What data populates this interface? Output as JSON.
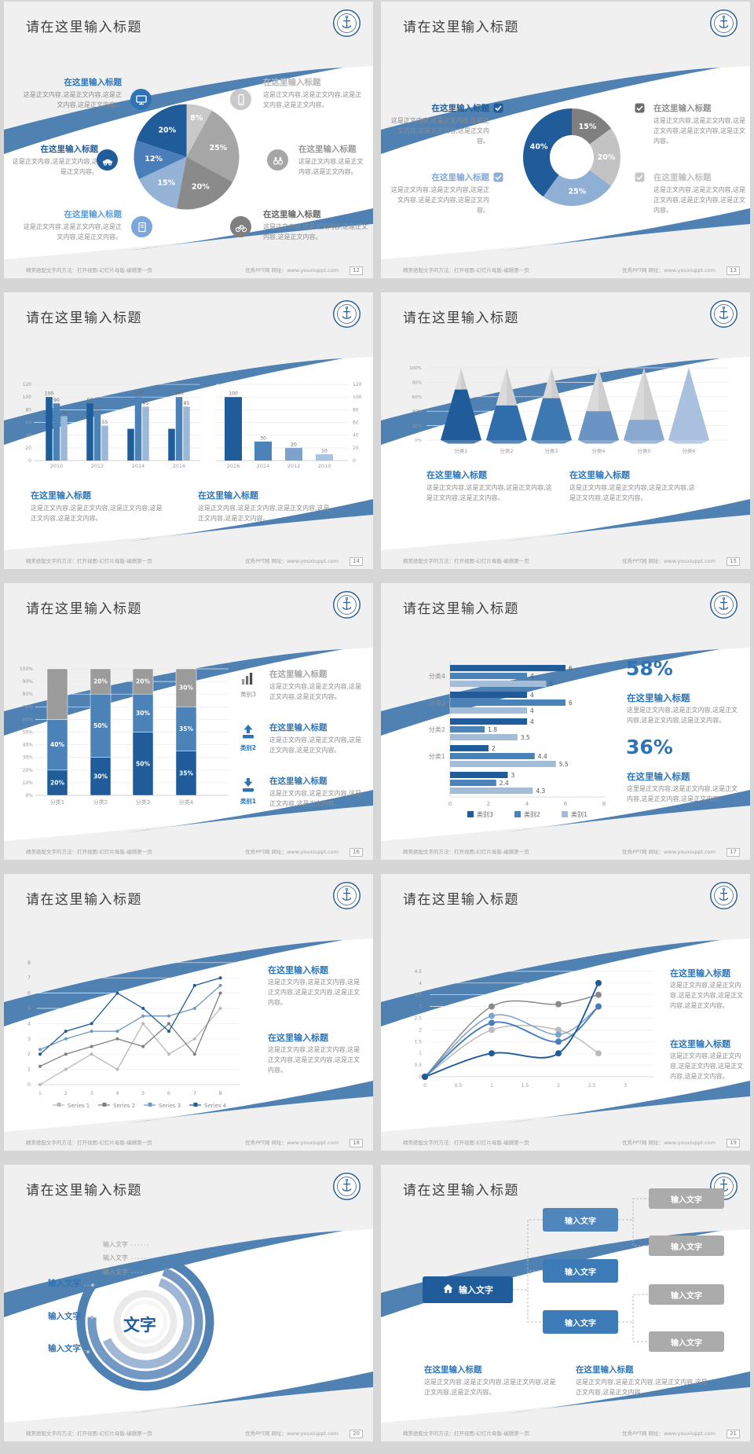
{
  "common": {
    "slide_title": "请在这里输入标题",
    "block_heading": "在这里输入标题",
    "body_a": "这是正文内容,这是正文内容,这是正文内容,这是正文内容。",
    "body_s": "这是正文内容,这是正文内容,这是正文内容。",
    "body_b": "这是正文内容,这是正文内容,这是正文内容,这是正文内容,这是正文内容。",
    "body_c": "这里是正文内容,这是正文内容,这是正文内容,这是正文内容,这是正文内容。",
    "input_text": "输入文字",
    "footer_left": "精美绝配文字的方法：打开视图-幻灯片母版-编辑第一页",
    "footer_right": "优秀PPT网  网址：www.youxiuppt.com"
  },
  "colors": {
    "accent_blue": "#4f81b3",
    "dark_blue": "#1f5c99",
    "mid_blue": "#4b82b8",
    "light_blue": "#9ab8d8",
    "heading_blue": "#2e74b5",
    "dark_gray": "#7f7f7f",
    "mid_gray": "#a6a6a6",
    "light_gray": "#c9c9c9"
  },
  "slides": {
    "s1": {
      "page": "12",
      "icons": [
        "monitor",
        "car",
        "book",
        "phone",
        "binoculars",
        "bicycle"
      ]
    },
    "s2": {
      "page": "13",
      "icons": [
        "checkbox",
        "checkbox",
        "checkbox",
        "checkbox"
      ]
    },
    "s3": {
      "page": "14"
    },
    "s4": {
      "page": "15"
    },
    "s5": {
      "page": "16",
      "icons": [
        "bar-chart",
        "upload-arrow",
        "download-arrow"
      ],
      "item_captions": [
        "类别3",
        "类别2",
        "类别1"
      ]
    },
    "s6": {
      "page": "17",
      "callouts": [
        {
          "pct": "58%"
        },
        {
          "pct": "36%"
        }
      ]
    },
    "s7": {
      "page": "18"
    },
    "s8": {
      "page": "19"
    },
    "s9": {
      "page": "20",
      "center": "文字"
    },
    "s10": {
      "page": "21",
      "icons": [
        "house"
      ]
    }
  },
  "chart_data": [
    {
      "slide_page": "12",
      "type": "pie",
      "labels": [
        "8%",
        "25%",
        "20%",
        "15%",
        "12%",
        "20%"
      ],
      "values": [
        8,
        25,
        20,
        15,
        12,
        20
      ],
      "colors": [
        "#c9c9c9",
        "#a6a6a6",
        "#8a8a8a",
        "#94b3d7",
        "#4a7ebb",
        "#1f5c99"
      ],
      "start": "12 o'clock, clockwise"
    },
    {
      "slide_page": "13",
      "type": "pie",
      "subtype": "donut",
      "labels": [
        "15%",
        "20%",
        "25%",
        "40%"
      ],
      "values": [
        15,
        20,
        25,
        40
      ],
      "colors": [
        "#7f7f7f",
        "#c3c3c3",
        "#8fafd4",
        "#1f5c99"
      ],
      "inner_ratio": 0.45
    },
    {
      "slide_page": "14",
      "type": "bar",
      "subtype": "grouped",
      "categories": [
        "2010",
        "2012",
        "2014",
        "2016"
      ],
      "series": [
        {
          "name": "series-dark",
          "color": "#1f5c99",
          "values": [
            100,
            90,
            50,
            50
          ],
          "labels": [
            "100",
            "90",
            "",
            ""
          ]
        },
        {
          "name": "series-mid",
          "color": "#4b82b8",
          "values": [
            90,
            75,
            100,
            100
          ],
          "labels": [
            "90",
            "75",
            "100",
            "100"
          ]
        },
        {
          "name": "series-light",
          "color": "#9ab8d8",
          "values": [
            70,
            55,
            85,
            85
          ],
          "labels": [
            "70",
            "55",
            "85",
            "85"
          ]
        }
      ],
      "ylim": [
        0,
        120
      ],
      "yticks": [
        0,
        20,
        40,
        60,
        80,
        100,
        120
      ],
      "y_axis_side": "left",
      "grid": true
    },
    {
      "slide_page": "14",
      "type": "bar",
      "subtype": "simple",
      "categories": [
        "2016",
        "2014",
        "2012",
        "2010"
      ],
      "values": [
        100,
        30,
        20,
        10
      ],
      "labels": [
        "100",
        "30",
        "20",
        "10"
      ],
      "colors": [
        "#1f5c99",
        "#4b82b8",
        "#7da3cc",
        "#a9c3de"
      ],
      "ylim": [
        0,
        120
      ],
      "yticks": [
        0,
        20,
        40,
        60,
        80,
        100,
        120
      ],
      "y_axis_side": "right",
      "grid": true
    },
    {
      "slide_page": "15",
      "type": "bar",
      "subtype": "cone",
      "categories": [
        "分类1",
        "分类2",
        "分类3",
        "分类4",
        "分类5",
        "分类6"
      ],
      "values": [
        70,
        48,
        58,
        40,
        28,
        100
      ],
      "cone_colors": [
        "#1f5c99",
        "#2f6dab",
        "#3d78b2",
        "#6b94c4",
        "#89a9d0",
        "#a9c0de"
      ],
      "rest_color": "#dadada",
      "ylim": [
        0,
        100
      ],
      "yticks": [
        "0%",
        "20%",
        "40%",
        "60%",
        "80%",
        "100%"
      ],
      "grid": true
    },
    {
      "slide_page": "16",
      "type": "bar",
      "subtype": "stacked-percent",
      "categories": [
        "分类1",
        "分类2",
        "分类3",
        "分类4"
      ],
      "series": [
        {
          "name": "类别1",
          "color": "#1f5c99",
          "values": [
            20,
            30,
            50,
            35
          ],
          "labels": [
            "20%",
            "30%",
            "50%",
            "35%"
          ]
        },
        {
          "name": "类别2",
          "color": "#4b82b8",
          "values": [
            40,
            50,
            30,
            35
          ],
          "labels": [
            "40%",
            "50%",
            "30%",
            "35%"
          ]
        },
        {
          "name": "类别3",
          "color": "#9b9b9b",
          "values": [
            40,
            20,
            20,
            30
          ],
          "labels": [
            "",
            "20%",
            "20%",
            "30%"
          ]
        }
      ],
      "yticks": [
        "0%",
        "10%",
        "20%",
        "30%",
        "40%",
        "50%",
        "60%",
        "70%",
        "80%",
        "90%",
        "100%"
      ],
      "grid": true
    },
    {
      "slide_page": "17",
      "type": "bar",
      "subtype": "horizontal-grouped",
      "categories": [
        "分类4",
        "分类3",
        "分类2",
        "分类1",
        ""
      ],
      "series": [
        {
          "name": "类别3",
          "color": "#1f5c99",
          "values": [
            6,
            4,
            4,
            2,
            3
          ]
        },
        {
          "name": "类别2",
          "color": "#4b82b8",
          "values": [
            4,
            6,
            1.8,
            4.4,
            2.4
          ]
        },
        {
          "name": "类别1",
          "color": "#a3bdd9",
          "values": [
            5,
            4,
            3.5,
            5.5,
            4.3
          ]
        }
      ],
      "xlim": [
        0,
        8
      ],
      "xticks": [
        0,
        2,
        4,
        6,
        8
      ],
      "legend": [
        "类别3",
        "类别2",
        "类别1"
      ],
      "legend_position": "bottom"
    },
    {
      "slide_page": "18",
      "type": "line",
      "x": [
        1,
        2,
        3,
        4,
        5,
        6,
        7,
        8
      ],
      "series": [
        {
          "name": "Series 1",
          "color": "#b9b9b9",
          "values": [
            0,
            1,
            2,
            1,
            4,
            2,
            3,
            5
          ]
        },
        {
          "name": "Series 2",
          "color": "#7f7f7f",
          "values": [
            1.2,
            2,
            2.5,
            3,
            2.5,
            4,
            2,
            6
          ]
        },
        {
          "name": "Series 3",
          "color": "#6f97c4",
          "values": [
            2.3,
            3,
            3.5,
            3.5,
            4.5,
            4.5,
            5,
            6.5
          ]
        },
        {
          "name": "Series 4",
          "color": "#1f5c99",
          "values": [
            2,
            3.5,
            4,
            6,
            5,
            3.5,
            6.5,
            7
          ]
        }
      ],
      "ylim": [
        0,
        8
      ],
      "yticks": [
        0,
        1,
        2,
        3,
        4,
        5,
        6,
        7,
        8
      ],
      "grid": true,
      "legend_position": "bottom"
    },
    {
      "slide_page": "19",
      "type": "line",
      "subtype": "smooth",
      "x": [
        0,
        1,
        2,
        2.6
      ],
      "series": [
        {
          "name": "curve-dark-gray",
          "color": "#8a8a8a",
          "values": [
            0,
            3,
            3.1,
            3.5
          ]
        },
        {
          "name": "curve-light-gray",
          "color": "#bcbcbc",
          "values": [
            0,
            2,
            2,
            1
          ]
        },
        {
          "name": "curve-light-blue",
          "color": "#7fa3cc",
          "values": [
            0,
            2.6,
            1.8,
            3
          ]
        },
        {
          "name": "curve-mid-blue",
          "color": "#4a7ebb",
          "values": [
            0,
            2.3,
            1.5,
            3
          ]
        },
        {
          "name": "curve-dark-blue",
          "color": "#1f5c99",
          "values": [
            0,
            1,
            1,
            4
          ]
        }
      ],
      "ylim": [
        0,
        4.5
      ],
      "yticks": [
        0,
        0.5,
        1,
        1.5,
        2,
        2.5,
        3,
        3.5,
        4,
        4.5
      ],
      "xticks": [
        0,
        0.5,
        1,
        1.5,
        2,
        2.5,
        3
      ],
      "grid": true
    }
  ]
}
